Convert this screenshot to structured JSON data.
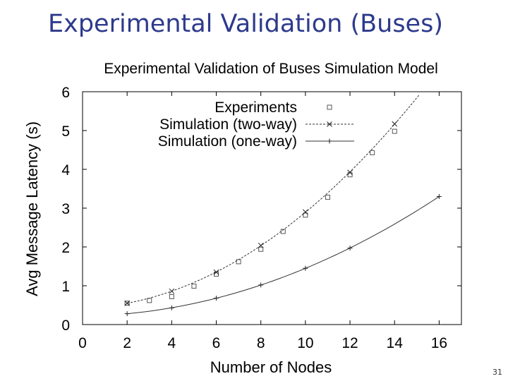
{
  "slide": {
    "title": "Experimental Validation (Buses)",
    "page_number": "31"
  },
  "chart_data": {
    "type": "scatter",
    "title": "Experimental Validation of Buses Simulation Model",
    "xlabel": "Number of Nodes",
    "ylabel": "Avg Message Latency (s)",
    "xlim": [
      0,
      17
    ],
    "ylim": [
      0,
      6
    ],
    "xticks": [
      0,
      2,
      4,
      6,
      8,
      10,
      12,
      14,
      16
    ],
    "yticks": [
      0,
      1,
      2,
      3,
      4,
      5,
      6
    ],
    "grid": false,
    "legend_position": "top-right",
    "series": [
      {
        "name": "Experiments",
        "marker": "square",
        "line": "none",
        "x": [
          2,
          3,
          4,
          5,
          6,
          7,
          8,
          9,
          10,
          11,
          12,
          13,
          14
        ],
        "y": [
          0.55,
          0.62,
          0.72,
          0.99,
          1.3,
          1.62,
          1.94,
          2.4,
          2.82,
          3.28,
          3.86,
          4.43,
          4.98
        ]
      },
      {
        "name": "Simulation (two-way)",
        "marker": "x",
        "line": "dashed",
        "x": [
          2,
          4,
          6,
          8,
          10,
          12,
          14
        ],
        "y": [
          0.55,
          0.86,
          1.35,
          2.04,
          2.9,
          3.92,
          5.17
        ]
      },
      {
        "name": "Simulation (one-way)",
        "marker": "plus",
        "line": "solid",
        "x": [
          2,
          4,
          6,
          8,
          10,
          12,
          16
        ],
        "y": [
          0.28,
          0.43,
          0.68,
          1.02,
          1.45,
          1.97,
          3.3
        ]
      }
    ]
  }
}
